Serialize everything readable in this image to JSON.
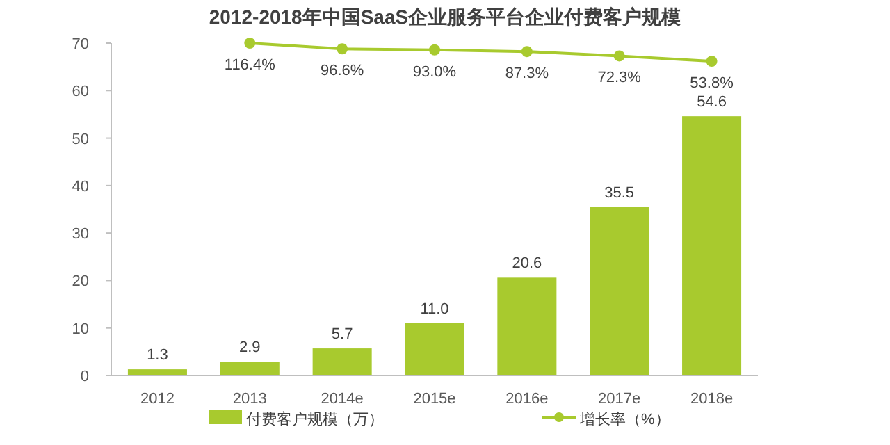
{
  "chart_data": {
    "type": "bar",
    "title": "2012-2018年中国SaaS企业服务平台企业付费客户规模",
    "categories": [
      "2012",
      "2013",
      "2014e",
      "2015e",
      "2016e",
      "2017e",
      "2018e"
    ],
    "series": [
      {
        "name": "付费客户规模（万）",
        "type": "bar",
        "color": "#a8ca2e",
        "values": [
          1.3,
          2.9,
          5.7,
          11.0,
          20.6,
          35.5,
          54.6
        ],
        "value_labels": [
          "1.3",
          "2.9",
          "5.7",
          "11.0",
          "20.6",
          "35.5",
          "54.6"
        ]
      },
      {
        "name": "增长率（%）",
        "type": "line",
        "axis": "y2",
        "color": "#a8ca2e",
        "marker": "circle",
        "values": [
          null,
          116.4,
          96.6,
          93.0,
          87.3,
          72.3,
          53.8
        ],
        "value_labels": [
          null,
          "116.4%",
          "96.6%",
          "93.0%",
          "87.3%",
          "72.3%",
          "53.8%"
        ]
      }
    ],
    "ylim": [
      0,
      70
    ],
    "yticks": [
      0,
      10,
      20,
      30,
      40,
      50,
      60,
      70
    ],
    "legend": "bottom",
    "grid": false
  }
}
